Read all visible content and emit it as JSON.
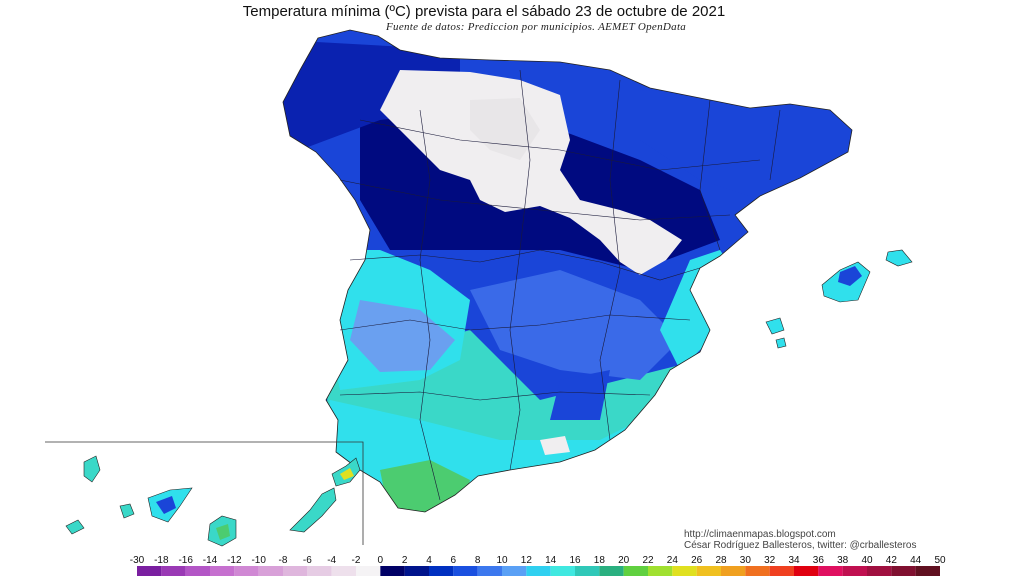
{
  "title": "Temperatura mínima (ºC) prevista para el sábado 23 de octubre de 2021",
  "subtitle": "Fuente de datos: Prediccion por municipios. AEMET OpenData",
  "credits": {
    "line1": "http://climaenmapas.blogspot.com",
    "line2": "César Rodríguez Ballesteros, twitter: @crballesteros"
  },
  "legend": {
    "unit": "ºC",
    "ticks": [
      "-30",
      "-18",
      "-16",
      "-14",
      "-12",
      "-10",
      "-8",
      "-6",
      "-4",
      "-2",
      "0",
      "2",
      "4",
      "6",
      "8",
      "10",
      "12",
      "14",
      "16",
      "18",
      "20",
      "22",
      "24",
      "26",
      "28",
      "30",
      "32",
      "34",
      "36",
      "38",
      "40",
      "42",
      "44",
      "50"
    ],
    "colors": [
      "#7a1fa0",
      "#9a3ab5",
      "#b356c6",
      "#c670cf",
      "#d088d4",
      "#d8a0d8",
      "#dfb6dd",
      "#e6cce4",
      "#eee0ec",
      "#f5f3f5",
      "#000066",
      "#00148c",
      "#0030c0",
      "#1a50e0",
      "#3c78ee",
      "#5aa0f5",
      "#30d0f0",
      "#40e8e0",
      "#30c8b8",
      "#2ab080",
      "#60d040",
      "#a0e030",
      "#e0e020",
      "#f0c020",
      "#f0a020",
      "#f07020",
      "#f04020",
      "#e00010",
      "#e01060",
      "#c01050",
      "#a01040",
      "#801030",
      "#601020"
    ]
  },
  "map_colors": {
    "very_cold": "#f0eef0",
    "deep_blue": "#000a80",
    "navy": "#0a22b0",
    "blue": "#1a45d8",
    "mid_blue": "#3a6ae8",
    "light_blue": "#6aa0f0",
    "cyan": "#30e0ec",
    "aqua": "#3ad8c8",
    "teal": "#2fbf9f",
    "green": "#4ccc70"
  }
}
